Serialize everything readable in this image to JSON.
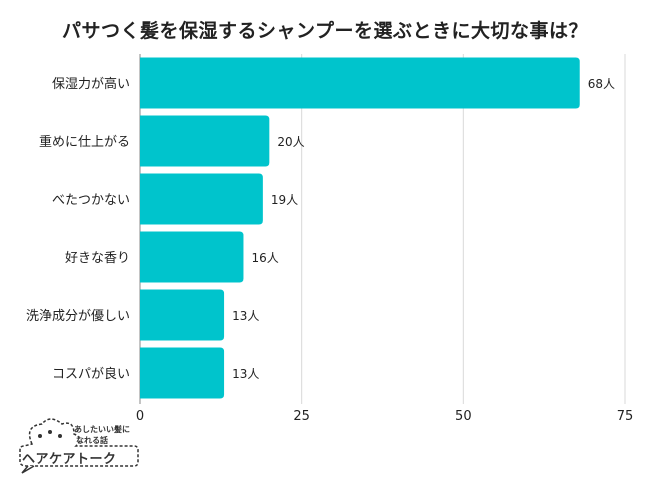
{
  "chart_data": {
    "type": "bar",
    "orientation": "horizontal",
    "title": "パサつく髪を保湿するシャンプーを選ぶときに大切な事は？",
    "categories": [
      "保湿力が高い",
      "重めに仕上がる",
      "べたつかない",
      "好きな香り",
      "洗浄成分が優しい",
      "コスパが良い"
    ],
    "values": [
      68,
      20,
      19,
      16,
      13,
      13
    ],
    "value_suffix": "人",
    "xlim": [
      0,
      75
    ],
    "xticks": [
      0,
      25,
      50,
      75
    ],
    "grid": true,
    "bar_color": "#00C4CC"
  },
  "logo": {
    "tagline_1": "あしたいい髪に",
    "tagline_2": "なれる話",
    "name": "ヘアケアトーク"
  }
}
